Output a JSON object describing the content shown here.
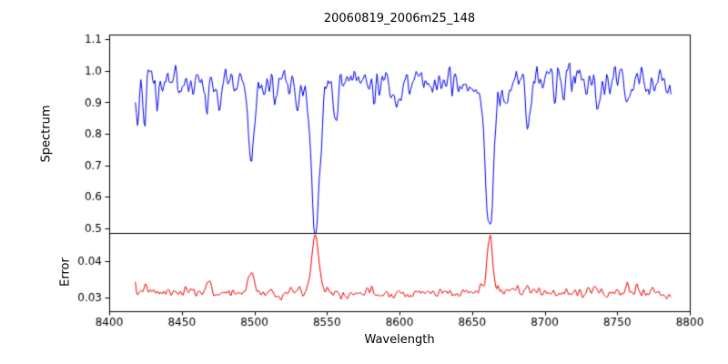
{
  "figure": {
    "background": "#ffffff",
    "axis_color": "#000000",
    "tick_font_px": 12
  },
  "chart_data": [
    {
      "type": "line",
      "panel": "top",
      "title": "20060819_2006m25_148",
      "ylabel": "Spectrum",
      "line_color": "#0000ee",
      "xlim": [
        8400,
        8800
      ],
      "ylim": [
        0.485,
        1.115
      ],
      "yticks": [
        0.5,
        0.6,
        0.7,
        0.8,
        0.9,
        1.0,
        1.1
      ],
      "ytick_labels": [
        "0.5",
        "0.6",
        "0.7",
        "0.8",
        "0.9",
        "1.0",
        "1.1"
      ],
      "x_start": 8418,
      "x_end": 8787,
      "x_step": 0.75,
      "continuum": 0.965,
      "noise_sigma": 0.038,
      "noise_seed": 42,
      "absorption_lines": [
        {
          "center": 8419.5,
          "depth": 0.09,
          "sigma": 1.0
        },
        {
          "center": 8424.5,
          "depth": 0.08,
          "sigma": 1.0
        },
        {
          "center": 8433.0,
          "depth": 0.06,
          "sigma": 1.0
        },
        {
          "center": 8467.5,
          "depth": 0.11,
          "sigma": 1.4
        },
        {
          "center": 8476.0,
          "depth": 0.06,
          "sigma": 1.0
        },
        {
          "center": 8498.0,
          "depth": 0.26,
          "sigma": 2.1
        },
        {
          "center": 8513.5,
          "depth": 0.08,
          "sigma": 1.1
        },
        {
          "center": 8529.0,
          "depth": 0.06,
          "sigma": 1.0
        },
        {
          "center": 8542.1,
          "depth": 0.45,
          "sigma": 2.7
        },
        {
          "center": 8542.1,
          "depth": 0.05,
          "sigma": 8.0
        },
        {
          "center": 8556.5,
          "depth": 0.09,
          "sigma": 1.2
        },
        {
          "center": 8582.0,
          "depth": 0.05,
          "sigma": 1.0
        },
        {
          "center": 8598.5,
          "depth": 0.06,
          "sigma": 1.0
        },
        {
          "center": 8621.0,
          "depth": 0.04,
          "sigma": 1.0
        },
        {
          "center": 8662.1,
          "depth": 0.42,
          "sigma": 2.4
        },
        {
          "center": 8662.1,
          "depth": 0.05,
          "sigma": 7.0
        },
        {
          "center": 8674.0,
          "depth": 0.05,
          "sigma": 1.0
        },
        {
          "center": 8688.5,
          "depth": 0.12,
          "sigma": 1.4
        },
        {
          "center": 8713.0,
          "depth": 0.05,
          "sigma": 1.0
        },
        {
          "center": 8736.5,
          "depth": 0.06,
          "sigma": 1.1
        },
        {
          "center": 8757.0,
          "depth": 0.06,
          "sigma": 1.0
        },
        {
          "center": 8772.0,
          "depth": 0.04,
          "sigma": 1.0
        }
      ]
    },
    {
      "type": "line",
      "panel": "bottom",
      "xlabel": "Wavelength",
      "ylabel": "Error",
      "line_color": "#ee0000",
      "xlim": [
        8400,
        8800
      ],
      "ylim": [
        0.02625,
        0.04775
      ],
      "yticks": [
        0.03,
        0.04
      ],
      "ytick_labels": [
        "0.03",
        "0.04"
      ],
      "xticks": [
        8400,
        8450,
        8500,
        8550,
        8600,
        8650,
        8700,
        8750,
        8800
      ],
      "xtick_labels": [
        "8400",
        "8450",
        "8500",
        "8550",
        "8600",
        "8650",
        "8700",
        "8750",
        "8800"
      ],
      "baseline": 0.0313,
      "noise_sigma": 0.0011,
      "noise_seed": 7,
      "peaks": [
        {
          "center": 8424.0,
          "height": 0.002,
          "sigma": 1.2
        },
        {
          "center": 8467.5,
          "height": 0.0035,
          "sigma": 1.5
        },
        {
          "center": 8498.0,
          "height": 0.0062,
          "sigma": 2.0
        },
        {
          "center": 8542.1,
          "height": 0.0148,
          "sigma": 2.2
        },
        {
          "center": 8542.1,
          "height": 0.002,
          "sigma": 6.0
        },
        {
          "center": 8662.1,
          "height": 0.014,
          "sigma": 1.8
        },
        {
          "center": 8662.1,
          "height": 0.0018,
          "sigma": 5.0
        },
        {
          "center": 8688.0,
          "height": 0.002,
          "sigma": 1.5
        },
        {
          "center": 8736.0,
          "height": 0.0015,
          "sigma": 1.2
        },
        {
          "center": 8757.0,
          "height": 0.0028,
          "sigma": 1.0
        },
        {
          "center": 8763.5,
          "height": 0.0032,
          "sigma": 1.0
        },
        {
          "center": 8775.0,
          "height": 0.0022,
          "sigma": 1.0
        }
      ],
      "end_drop": {
        "from": 8783,
        "value": 0.0295
      }
    }
  ]
}
